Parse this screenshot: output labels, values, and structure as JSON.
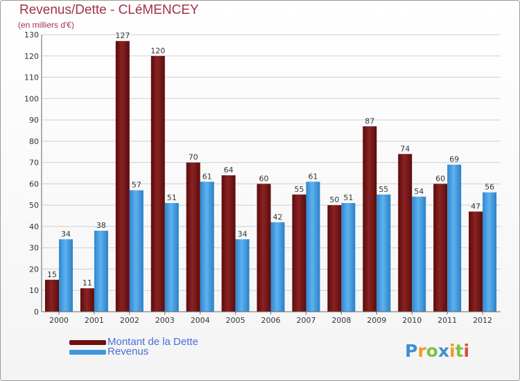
{
  "header": {
    "title": "Revenus/Dette - CLéMENCEY",
    "subtitle": "(en milliers d'€)"
  },
  "chart_data": {
    "type": "bar",
    "categories": [
      "2000",
      "2001",
      "2002",
      "2003",
      "2004",
      "2005",
      "2006",
      "2007",
      "2008",
      "2009",
      "2010",
      "2011",
      "2012"
    ],
    "series": [
      {
        "name": "Montant de la Dette",
        "color": "#7a1a1a",
        "values": [
          15,
          11,
          127,
          120,
          70,
          64,
          60,
          55,
          50,
          87,
          74,
          60,
          47
        ]
      },
      {
        "name": "Revenus",
        "color": "#3f97dd",
        "values": [
          34,
          38,
          57,
          51,
          61,
          34,
          42,
          61,
          51,
          55,
          54,
          69,
          56
        ]
      }
    ],
    "ylim": [
      0,
      130
    ],
    "yticks": [
      0,
      10,
      20,
      30,
      40,
      50,
      60,
      70,
      80,
      90,
      100,
      110,
      120,
      130
    ],
    "grid": true,
    "legend_position": "bottom-left"
  },
  "legend": {
    "items": [
      {
        "label": "Montant de la Dette",
        "color": "#6b0f0f"
      },
      {
        "label": "Revenus",
        "color": "#3f97dd"
      }
    ]
  },
  "logo": {
    "text": "Proxiti",
    "icon": "proxiti-logo"
  }
}
